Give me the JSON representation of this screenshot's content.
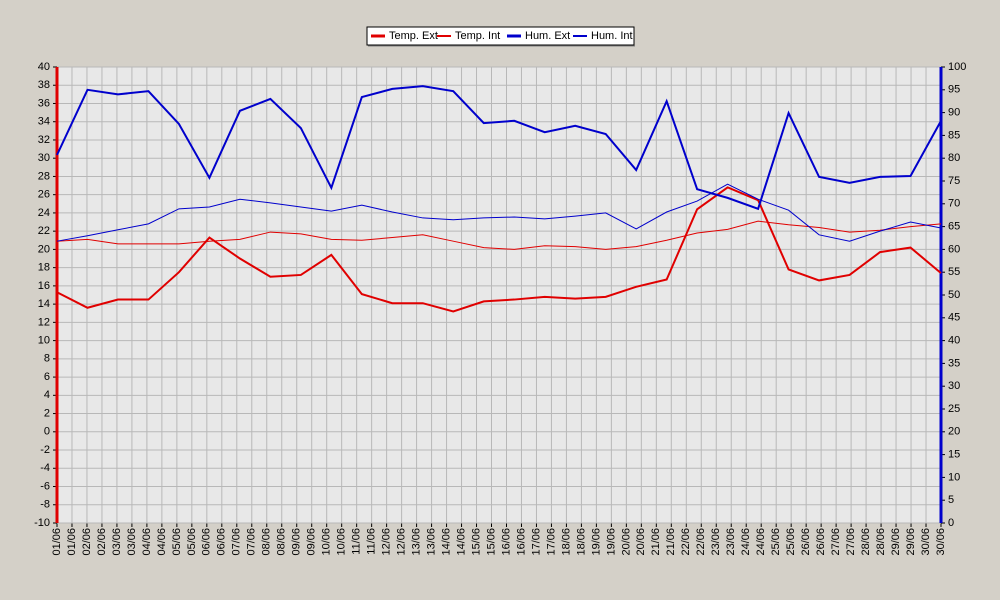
{
  "chart_data": {
    "type": "line",
    "categories": [
      "01/06",
      "02/06",
      "03/06",
      "04/06",
      "05/06",
      "06/06",
      "07/06",
      "08/06",
      "09/06",
      "10/06",
      "11/06",
      "12/06",
      "13/06",
      "14/06",
      "15/06",
      "16/06",
      "17/06",
      "18/06",
      "19/06",
      "20/06",
      "21/06",
      "22/06",
      "23/06",
      "24/06",
      "25/06",
      "26/06",
      "27/06",
      "28/06",
      "29/06",
      "30/06"
    ],
    "series": [
      {
        "name": "Temp. Ext",
        "color": "#e00000",
        "width": 2,
        "values": [
          15.3,
          13.6,
          14.5,
          14.5,
          17.5,
          21.3,
          19.0,
          17.0,
          17.2,
          19.4,
          15.1,
          14.1,
          14.1,
          13.2,
          14.3,
          14.5,
          14.8,
          14.6,
          14.8,
          15.9,
          16.7,
          24.4,
          26.8,
          25.4,
          17.8,
          16.6,
          17.2,
          19.7,
          20.2,
          17.4
        ]
      },
      {
        "name": "Temp. Int",
        "color": "#e00000",
        "width": 1,
        "values": [
          20.9,
          21.1,
          20.6,
          20.6,
          20.6,
          20.9,
          21.1,
          21.9,
          21.7,
          21.1,
          21.0,
          21.3,
          21.6,
          20.9,
          20.2,
          20.0,
          20.4,
          20.3,
          20.0,
          20.3,
          21.0,
          21.8,
          22.2,
          23.1,
          22.7,
          22.4,
          21.9,
          22.1,
          22.5,
          22.8
        ]
      },
      {
        "name": "Hum. Ext",
        "color": "#0000cc",
        "width": 2,
        "axis": "y2",
        "values": [
          80.7,
          95.0,
          94.0,
          94.7,
          87.5,
          75.7,
          90.4,
          93.0,
          86.6,
          73.5,
          93.4,
          95.2,
          95.8,
          94.7,
          87.7,
          88.2,
          85.7,
          87.1,
          85.3,
          77.4,
          92.5,
          73.2,
          71.3,
          68.9,
          89.9,
          75.9,
          74.6,
          75.9,
          76.1,
          88.2
        ]
      },
      {
        "name": "Hum. Int",
        "color": "#0000cc",
        "width": 1,
        "axis": "y2",
        "values": [
          61.8,
          63.0,
          64.3,
          65.6,
          68.9,
          69.3,
          71.0,
          70.2,
          69.3,
          68.4,
          69.7,
          68.2,
          66.9,
          66.5,
          66.9,
          67.1,
          66.7,
          67.3,
          68.0,
          64.5,
          68.2,
          70.6,
          74.3,
          71.0,
          68.6,
          63.2,
          61.8,
          64.0,
          66.0,
          64.7
        ]
      }
    ],
    "ylim": [
      -10,
      40
    ],
    "yticks": [
      -10,
      -8,
      -6,
      -4,
      -2,
      0,
      2,
      4,
      6,
      8,
      10,
      12,
      14,
      16,
      18,
      20,
      22,
      24,
      26,
      28,
      30,
      32,
      34,
      36,
      38,
      40
    ],
    "y2lim": [
      0,
      100
    ],
    "y2ticks": [
      0,
      5,
      10,
      15,
      20,
      25,
      30,
      35,
      40,
      45,
      50,
      55,
      60,
      65,
      70,
      75,
      80,
      85,
      90,
      95,
      100
    ],
    "grid": true,
    "legend": "top"
  }
}
